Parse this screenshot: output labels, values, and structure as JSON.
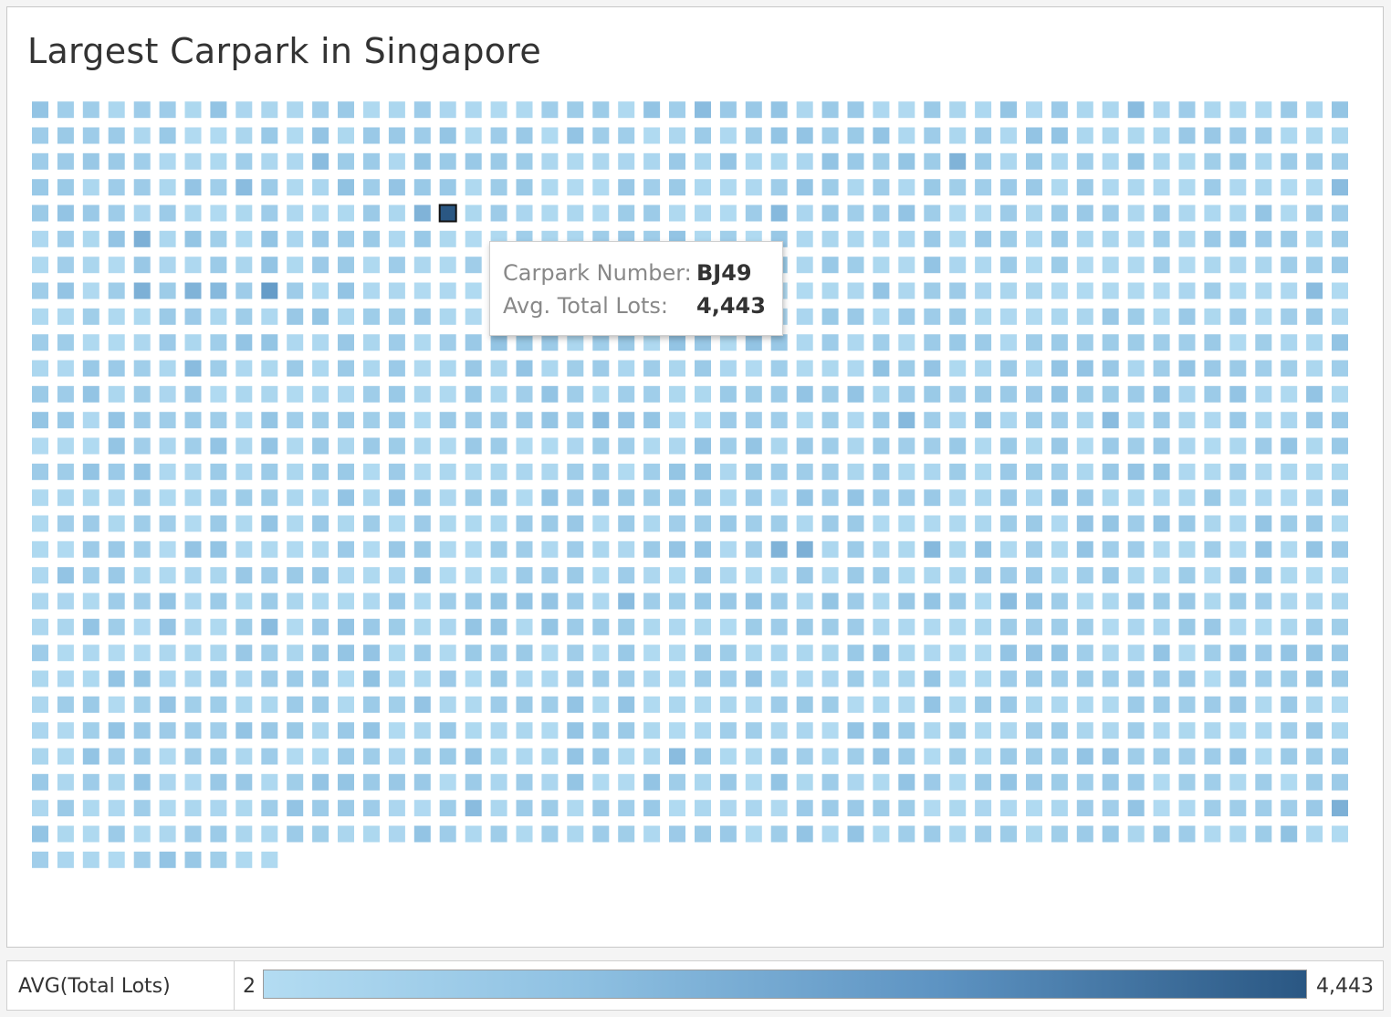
{
  "title": "Largest Carpark in Singapore",
  "tooltip": {
    "carpark_label": "Carpark Number:",
    "carpark_value": "BJ49",
    "lots_label": "Avg. Total Lots:",
    "lots_value": "4,443"
  },
  "legend": {
    "field": "AVG(Total Lots)",
    "min_label": "2",
    "max_label": "4,443",
    "color_low": "#b3dcf2",
    "color_high": "#2a5783"
  },
  "chart_data": {
    "type": "heatmap",
    "title": "Largest Carpark in Singapore",
    "measure": "AVG(Total Lots)",
    "range": [
      2,
      4443
    ],
    "columns": 52,
    "rows": 30,
    "total_marks": 1518,
    "selected": {
      "carpark": "BJ49",
      "avg_total_lots": 4443,
      "row": 4,
      "col": 16
    },
    "highlighted_marks": [
      {
        "row": 0,
        "col": 26,
        "value": 1500
      },
      {
        "row": 0,
        "col": 43,
        "value": 1500
      },
      {
        "row": 2,
        "col": 11,
        "value": 1500
      },
      {
        "row": 2,
        "col": 36,
        "value": 1800
      },
      {
        "row": 3,
        "col": 8,
        "value": 1500
      },
      {
        "row": 3,
        "col": 12,
        "value": 1300
      },
      {
        "row": 3,
        "col": 51,
        "value": 1500
      },
      {
        "row": 4,
        "col": 15,
        "value": 1800
      },
      {
        "row": 4,
        "col": 29,
        "value": 1600
      },
      {
        "row": 5,
        "col": 4,
        "value": 1900
      },
      {
        "row": 7,
        "col": 4,
        "value": 1900
      },
      {
        "row": 7,
        "col": 6,
        "value": 1800
      },
      {
        "row": 7,
        "col": 7,
        "value": 1600
      },
      {
        "row": 7,
        "col": 9,
        "value": 2600
      },
      {
        "row": 7,
        "col": 50,
        "value": 1500
      },
      {
        "row": 10,
        "col": 6,
        "value": 1500
      },
      {
        "row": 10,
        "col": 33,
        "value": 1300
      },
      {
        "row": 12,
        "col": 22,
        "value": 1500
      },
      {
        "row": 12,
        "col": 34,
        "value": 1600
      },
      {
        "row": 12,
        "col": 42,
        "value": 1500
      },
      {
        "row": 17,
        "col": 29,
        "value": 1800
      },
      {
        "row": 17,
        "col": 30,
        "value": 1900
      },
      {
        "row": 17,
        "col": 35,
        "value": 1600
      },
      {
        "row": 19,
        "col": 23,
        "value": 1500
      },
      {
        "row": 19,
        "col": 38,
        "value": 1500
      },
      {
        "row": 20,
        "col": 9,
        "value": 1500
      },
      {
        "row": 22,
        "col": 13,
        "value": 1300
      },
      {
        "row": 25,
        "col": 25,
        "value": 1500
      },
      {
        "row": 27,
        "col": 17,
        "value": 1500
      },
      {
        "row": 27,
        "col": 51,
        "value": 1900
      },
      {
        "row": 28,
        "col": 49,
        "value": 1300
      }
    ]
  }
}
